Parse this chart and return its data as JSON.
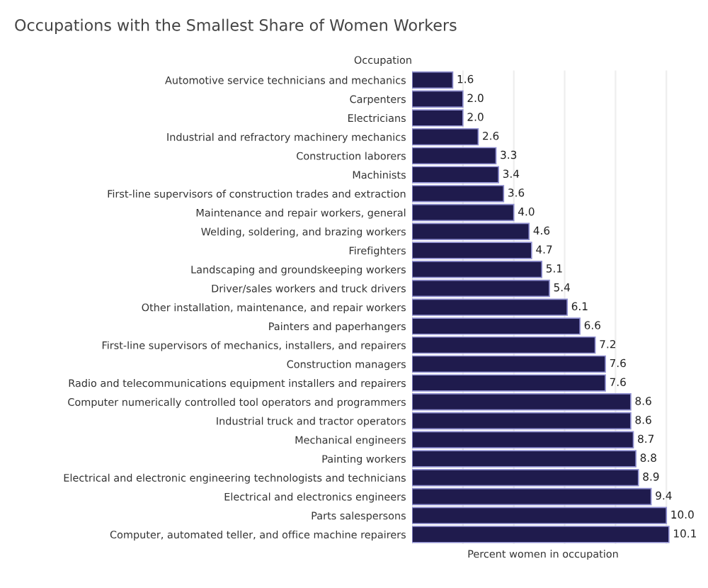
{
  "chart_data": {
    "type": "bar",
    "orientation": "horizontal",
    "title": "Occupations with the Smallest Share of Women Workers",
    "ylabel": "Occupation",
    "xlabel": "Percent women in occupation",
    "categories": [
      "Automotive service technicians and mechanics",
      "Carpenters",
      "Electricians",
      "Industrial and refractory machinery mechanics",
      "Construction laborers",
      "Machinists",
      "First-line supervisors of construction trades and extraction",
      "Maintenance and repair workers, general",
      "Welding, soldering, and brazing workers",
      "Firefighters",
      "Landscaping and groundskeeping workers",
      "Driver/sales workers and truck drivers",
      "Other installation, maintenance, and repair workers",
      "Painters and paperhangers",
      "First-line supervisors of mechanics, installers, and repairers",
      "Construction managers",
      "Radio and telecommunications equipment installers and repairers",
      "Computer numerically controlled tool operators and programmers",
      "Industrial truck and tractor operators",
      "Mechanical engineers",
      "Painting workers",
      "Electrical and electronic engineering technologists and technicians",
      "Electrical and electronics engineers",
      "Parts salespersons",
      "Computer, automated teller, and office machine repairers"
    ],
    "values": [
      1.6,
      2.0,
      2.0,
      2.6,
      3.3,
      3.4,
      3.6,
      4.0,
      4.6,
      4.7,
      5.1,
      5.4,
      6.1,
      6.6,
      7.2,
      7.6,
      7.6,
      8.6,
      8.6,
      8.7,
      8.8,
      8.9,
      9.4,
      10.0,
      10.1
    ],
    "value_labels": [
      "1.6",
      "2.0",
      "2.0",
      "2.6",
      "3.3",
      "3.4",
      "3.6",
      "4.0",
      "4.6",
      "4.7",
      "5.1",
      "5.4",
      "6.1",
      "6.6",
      "7.2",
      "7.6",
      "7.6",
      "8.6",
      "8.6",
      "8.7",
      "8.8",
      "8.9",
      "9.4",
      "10.0",
      "10.1"
    ],
    "color": "#1f1b4d",
    "xlim": [
      0,
      10.3
    ],
    "xticks": [
      {
        "value": 0,
        "label": null
      },
      {
        "value": 2,
        "label": null
      },
      {
        "value": 4,
        "label": null
      },
      {
        "value": 6,
        "label": null
      },
      {
        "value": 8,
        "label": null
      },
      {
        "value": 10,
        "label": null
      }
    ],
    "tick_labels": "y",
    "grid": "x",
    "legend": false
  }
}
